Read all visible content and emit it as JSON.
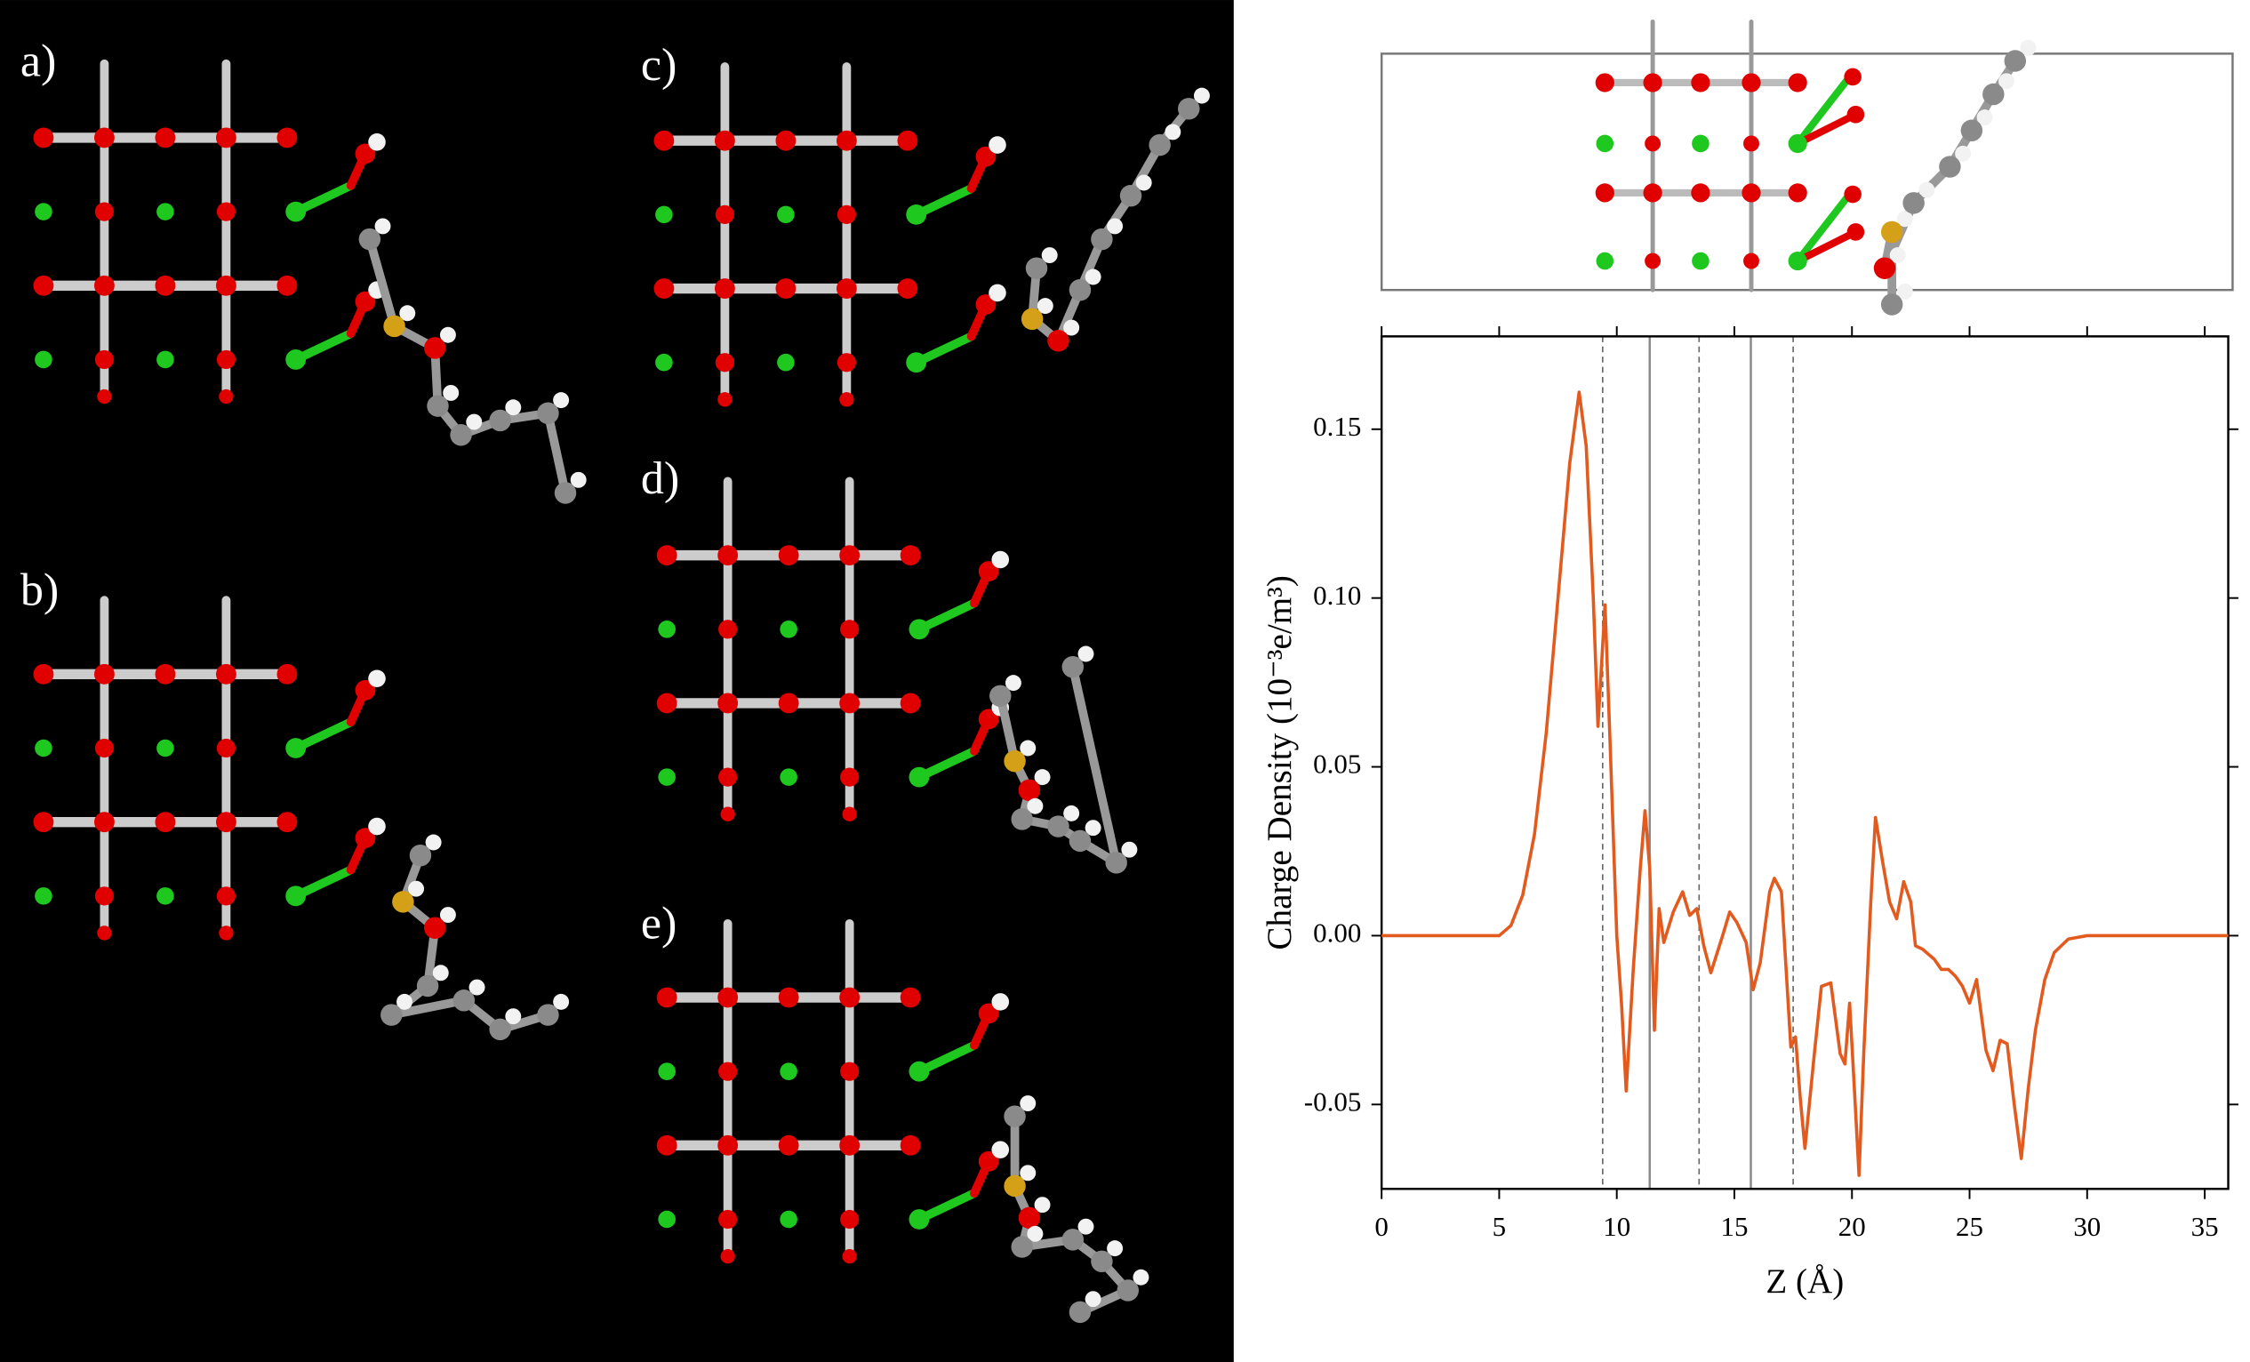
{
  "figure_panels": [
    {
      "label": "a)"
    },
    {
      "label": "b)"
    },
    {
      "label": "c)"
    },
    {
      "label": "d)"
    },
    {
      "label": "e)"
    }
  ],
  "chart_data": {
    "type": "line",
    "x_label": "Z (Å)",
    "y_label": "Charge Density (10⁻³e/m³)",
    "x": [
      0,
      5,
      5.5,
      6,
      6.5,
      7,
      7.5,
      8,
      8.4,
      8.7,
      9.0,
      9.2,
      9.5,
      9.7,
      10,
      10.2,
      10.4,
      10.7,
      11.0,
      11.2,
      11.4,
      11.6,
      11.8,
      12.0,
      12.4,
      12.8,
      13.1,
      13.4,
      13.7,
      14,
      14.5,
      14.8,
      15.1,
      15.5,
      15.8,
      16.1,
      16.5,
      16.7,
      17.0,
      17.2,
      17.4,
      17.6,
      17.8,
      18.0,
      18.4,
      18.7,
      19.1,
      19.5,
      19.7,
      19.9,
      20.1,
      20.3,
      20.5,
      20.8,
      21.0,
      21.3,
      21.6,
      21.9,
      22.2,
      22.5,
      22.7,
      23,
      23.5,
      23.8,
      24.1,
      24.4,
      24.7,
      25.0,
      25.3,
      25.7,
      26.0,
      26.3,
      26.6,
      26.9,
      27.2,
      27.5,
      27.8,
      28.2,
      28.6,
      29.2,
      30,
      36
    ],
    "series": [
      {
        "color": "#e35a1f",
        "values": [
          0,
          0,
          0.003,
          0.012,
          0.03,
          0.06,
          0.1,
          0.14,
          0.161,
          0.145,
          0.1,
          0.062,
          0.098,
          0.06,
          0.0,
          -0.02,
          -0.046,
          -0.01,
          0.02,
          0.037,
          0.02,
          -0.028,
          0.008,
          -0.002,
          0.007,
          0.013,
          0.006,
          0.008,
          -0.003,
          -0.011,
          0.0,
          0.007,
          0.004,
          -0.002,
          -0.016,
          -0.008,
          0.013,
          0.017,
          0.013,
          -0.01,
          -0.033,
          -0.03,
          -0.048,
          -0.063,
          -0.035,
          -0.015,
          -0.014,
          -0.035,
          -0.038,
          -0.02,
          -0.045,
          -0.071,
          -0.035,
          0.01,
          0.035,
          0.022,
          0.01,
          0.005,
          0.016,
          0.01,
          -0.003,
          -0.004,
          -0.007,
          -0.01,
          -0.01,
          -0.012,
          -0.015,
          -0.02,
          -0.013,
          -0.034,
          -0.04,
          -0.031,
          -0.032,
          -0.05,
          -0.066,
          -0.045,
          -0.028,
          -0.013,
          -0.005,
          -0.001,
          0,
          0
        ]
      }
    ],
    "xlim": [
      0,
      36
    ],
    "xticks": [
      0,
      5,
      10,
      15,
      20,
      25,
      30,
      35
    ],
    "ylim": [
      -0.075,
      0.1775
    ],
    "yticks": [
      -0.05,
      {
        "value": 0,
        "label": "0.00"
      },
      0.05,
      {
        "value": 0.1,
        "label": "0.10"
      },
      0.15
    ],
    "reference_lines": {
      "dashed": [
        9.4,
        13.5,
        17.5
      ],
      "solid": [
        11.4,
        15.7
      ]
    }
  }
}
